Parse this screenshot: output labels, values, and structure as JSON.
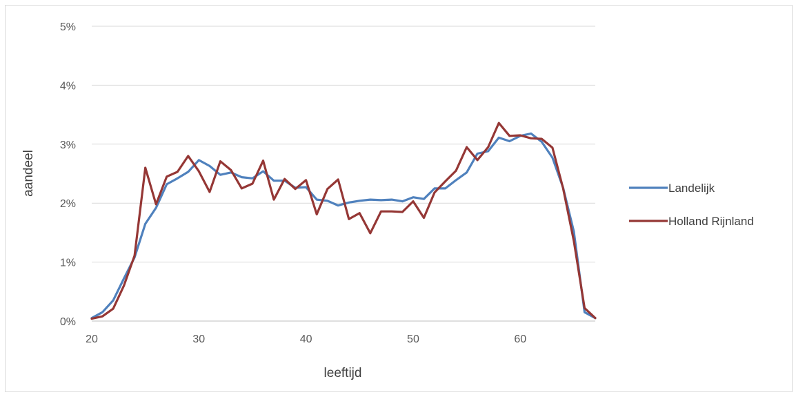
{
  "chart_data": {
    "type": "line",
    "title": "",
    "xlabel": "leeftijd",
    "ylabel": "aandeel",
    "xlim": [
      20,
      67
    ],
    "ylim": [
      0,
      0.05
    ],
    "x_ticks": [
      20,
      30,
      40,
      50,
      60
    ],
    "x_tick_labels": [
      "20",
      "30",
      "40",
      "50",
      "60"
    ],
    "y_ticks": [
      0,
      0.01,
      0.02,
      0.03,
      0.04,
      0.05
    ],
    "y_tick_labels": [
      "0%",
      "1%",
      "2%",
      "3%",
      "4%",
      "5%"
    ],
    "grid": "horizontal",
    "legend": "right",
    "x": [
      20,
      21,
      22,
      23,
      24,
      25,
      26,
      27,
      28,
      29,
      30,
      31,
      32,
      33,
      34,
      35,
      36,
      37,
      38,
      39,
      40,
      41,
      42,
      43,
      44,
      45,
      46,
      47,
      48,
      49,
      50,
      51,
      52,
      53,
      54,
      55,
      56,
      57,
      58,
      59,
      60,
      61,
      62,
      63,
      64,
      65,
      66,
      67
    ],
    "series": [
      {
        "name": "Landelijk",
        "color": "#4f81bd",
        "values": [
          0.0005,
          0.0015,
          0.0035,
          0.0072,
          0.0108,
          0.0165,
          0.0192,
          0.0232,
          0.0242,
          0.0253,
          0.0273,
          0.0263,
          0.0248,
          0.0252,
          0.0244,
          0.0242,
          0.0254,
          0.0238,
          0.0238,
          0.0226,
          0.0227,
          0.0206,
          0.0204,
          0.0196,
          0.0201,
          0.0204,
          0.0206,
          0.0205,
          0.0206,
          0.0203,
          0.021,
          0.0207,
          0.0225,
          0.0225,
          0.0239,
          0.0252,
          0.0284,
          0.0288,
          0.0311,
          0.0305,
          0.0314,
          0.0318,
          0.0304,
          0.0277,
          0.0226,
          0.0152,
          0.0015,
          0.0005
        ]
      },
      {
        "name": "Holland Rijnland",
        "color": "#953735",
        "values": [
          0.0004,
          0.0008,
          0.0021,
          0.006,
          0.0111,
          0.026,
          0.0198,
          0.0245,
          0.0253,
          0.028,
          0.0254,
          0.0219,
          0.0271,
          0.0256,
          0.0225,
          0.0233,
          0.0272,
          0.0206,
          0.0241,
          0.0224,
          0.0239,
          0.0181,
          0.0224,
          0.024,
          0.0173,
          0.0183,
          0.0149,
          0.0186,
          0.0186,
          0.0185,
          0.0203,
          0.0175,
          0.0218,
          0.0237,
          0.0255,
          0.0295,
          0.0273,
          0.0295,
          0.0336,
          0.0314,
          0.0315,
          0.031,
          0.0309,
          0.0294,
          0.0225,
          0.0136,
          0.0022,
          0.0005
        ]
      }
    ]
  }
}
